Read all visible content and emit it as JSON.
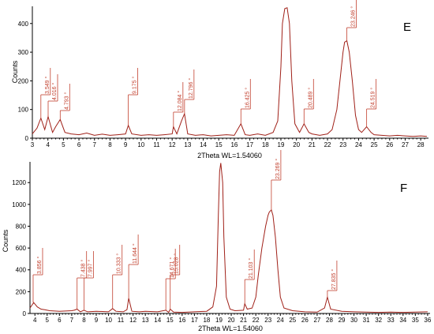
{
  "chart_data": [
    {
      "type": "line",
      "panel_label": "E",
      "xlabel": "2Theta WL=1.54060",
      "ylabel": "Counts",
      "xlim": [
        3,
        28.5
      ],
      "ylim": [
        0,
        460
      ],
      "xticks": [
        3,
        4,
        5,
        6,
        7,
        8,
        9,
        10,
        11,
        12,
        13,
        14,
        15,
        16,
        17,
        18,
        19,
        20,
        21,
        22,
        23,
        24,
        25,
        26,
        27,
        28
      ],
      "yticks": [
        0,
        100,
        200,
        300,
        400
      ],
      "series": [
        {
          "x": [
            3.0,
            3.3,
            3.549,
            3.8,
            4.016,
            4.3,
            4.5,
            4.793,
            5.1,
            5.5,
            6.0,
            6.5,
            7.0,
            7.5,
            8.0,
            8.5,
            9.0,
            9.175,
            9.4,
            10.0,
            10.5,
            11.0,
            11.5,
            12.0,
            12.084,
            12.3,
            12.6,
            12.796,
            13.0,
            13.5,
            14.0,
            14.5,
            15.0,
            15.5,
            16.0,
            16.425,
            16.7,
            17.0,
            17.5,
            18.0,
            18.5,
            18.8,
            19.0,
            19.1,
            19.25,
            19.4,
            19.55,
            19.7,
            19.9,
            20.2,
            20.489,
            20.8,
            21.0,
            21.5,
            22.0,
            22.3,
            22.6,
            22.8,
            23.0,
            23.1,
            23.246,
            23.4,
            23.6,
            23.8,
            24.0,
            24.2,
            24.519,
            24.8,
            25.0,
            25.5,
            26.0,
            26.5,
            27.0,
            27.5,
            28.0,
            28.4
          ],
          "y": [
            15,
            35,
            70,
            30,
            75,
            20,
            40,
            65,
            20,
            15,
            12,
            18,
            10,
            14,
            10,
            12,
            15,
            45,
            15,
            10,
            12,
            10,
            12,
            15,
            40,
            15,
            60,
            85,
            15,
            10,
            12,
            8,
            10,
            12,
            10,
            50,
            12,
            10,
            15,
            10,
            20,
            60,
            250,
            400,
            452,
            455,
            400,
            200,
            50,
            20,
            50,
            20,
            15,
            10,
            15,
            30,
            100,
            200,
            300,
            335,
            340,
            300,
            200,
            80,
            30,
            20,
            40,
            20,
            12,
            10,
            8,
            10,
            8,
            6,
            8,
            6
          ]
        }
      ],
      "annotations": [
        "3.549 °",
        "4.016 °",
        "4.793 °",
        "9.175 °",
        "12.084 °",
        "12.796 °",
        "16.425 °",
        "20.489 °",
        "23.246 °",
        "24.519 °"
      ]
    },
    {
      "type": "line",
      "panel_label": "F",
      "xlabel": "2Theta WL=1.54060",
      "ylabel": "Counts",
      "xlim": [
        3.6,
        36.2
      ],
      "ylim": [
        0,
        1390
      ],
      "xticks": [
        4,
        5,
        6,
        7,
        8,
        9,
        10,
        11,
        12,
        13,
        14,
        15,
        16,
        17,
        18,
        19,
        20,
        21,
        22,
        23,
        24,
        25,
        26,
        27,
        28,
        29,
        30,
        31,
        32,
        33,
        34,
        35,
        36
      ],
      "yticks": [
        0,
        200,
        400,
        600,
        800,
        1000,
        1200
      ],
      "series": [
        {
          "x": [
            3.6,
            3.9,
            4.2,
            4.5,
            4.8,
            5.2,
            6.0,
            7.0,
            7.2,
            7.438,
            7.7,
            7.997,
            8.3,
            9.0,
            10.0,
            10.333,
            10.6,
            11.2,
            11.5,
            11.644,
            11.9,
            12.5,
            13.0,
            14.0,
            14.671,
            14.9,
            15.028,
            15.3,
            16.0,
            17.0,
            18.0,
            18.5,
            18.8,
            18.95,
            19.05,
            19.15,
            19.3,
            19.4,
            19.6,
            19.9,
            20.3,
            21.0,
            21.103,
            21.3,
            21.7,
            22.0,
            22.2,
            22.5,
            22.8,
            23.0,
            23.1,
            23.269,
            23.4,
            23.6,
            23.8,
            24.0,
            24.3,
            25.0,
            26.0,
            27.0,
            27.6,
            27.835,
            28.1,
            29.0,
            30.0,
            31.0,
            32.0,
            33.0,
            34.0,
            35.0,
            36.0
          ],
          "y": [
            50,
            100,
            60,
            40,
            35,
            25,
            20,
            25,
            30,
            40,
            15,
            30,
            15,
            20,
            15,
            45,
            20,
            15,
            35,
            140,
            20,
            15,
            20,
            15,
            30,
            10,
            40,
            12,
            10,
            15,
            20,
            60,
            250,
            900,
            1300,
            1380,
            1200,
            700,
            150,
            40,
            25,
            30,
            90,
            40,
            50,
            150,
            350,
            600,
            800,
            900,
            930,
            950,
            900,
            700,
            400,
            150,
            50,
            25,
            15,
            12,
            50,
            150,
            40,
            20,
            15,
            12,
            10,
            12,
            10,
            12,
            15
          ]
        }
      ],
      "annotations": [
        "3.856 °",
        "7.438 °",
        "7.997 °",
        "10.333 °",
        "11.644 °",
        "14.671 °",
        "15.028 °",
        "21.103 °",
        "23.269 °",
        "27.835 °"
      ]
    }
  ]
}
